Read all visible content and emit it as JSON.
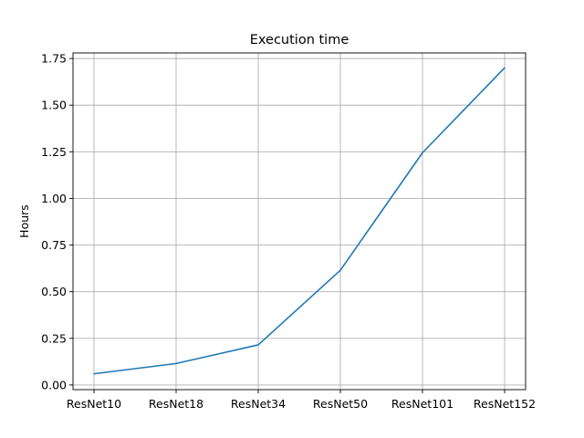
{
  "chart_data": {
    "type": "line",
    "title": "Execution time",
    "xlabel": "",
    "ylabel": "Hours",
    "categories": [
      "ResNet10",
      "ResNet18",
      "ResNet34",
      "ResNet50",
      "ResNet101",
      "ResNet152"
    ],
    "series": [
      {
        "values": [
          0.06,
          0.115,
          0.215,
          0.615,
          1.245,
          1.7
        ],
        "color": "#1f77b4"
      }
    ],
    "ylim": [
      -0.025,
      1.78
    ],
    "yticks": [
      0.0,
      0.25,
      0.5,
      0.75,
      1.0,
      1.25,
      1.5,
      1.75
    ],
    "ytick_labels": [
      "0.00",
      "0.25",
      "0.50",
      "0.75",
      "1.00",
      "1.25",
      "1.50",
      "1.75"
    ],
    "grid": true,
    "legend": "none"
  }
}
